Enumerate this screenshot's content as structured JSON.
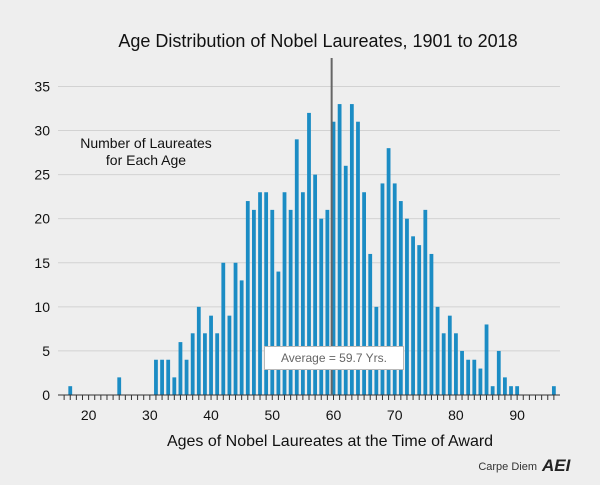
{
  "chart_data": {
    "type": "bar",
    "title": "Age Distribution of Nobel Laureates, 1901 to 2018",
    "xlabel": "Ages of Nobel Laureates at the Time of Award",
    "ylabel": "",
    "annotation_lines": [
      "Number of Laureates",
      "for Each Age"
    ],
    "average_value": 59.7,
    "average_label": "Average = 59.7 Yrs.",
    "xlim": [
      15,
      97
    ],
    "ylim": [
      0,
      38
    ],
    "x_ticks": [
      20,
      30,
      40,
      50,
      60,
      70,
      80,
      90
    ],
    "y_ticks": [
      0,
      5,
      10,
      15,
      20,
      25,
      30,
      35
    ],
    "grid": true,
    "bar_color": "#1b8cc4",
    "x": [
      17,
      18,
      19,
      20,
      21,
      22,
      23,
      24,
      25,
      26,
      27,
      28,
      29,
      30,
      31,
      32,
      33,
      34,
      35,
      36,
      37,
      38,
      39,
      40,
      41,
      42,
      43,
      44,
      45,
      46,
      47,
      48,
      49,
      50,
      51,
      52,
      53,
      54,
      55,
      56,
      57,
      58,
      59,
      60,
      61,
      62,
      63,
      64,
      65,
      66,
      67,
      68,
      69,
      70,
      71,
      72,
      73,
      74,
      75,
      76,
      77,
      78,
      79,
      80,
      81,
      82,
      83,
      84,
      85,
      86,
      87,
      88,
      89,
      90,
      91,
      92,
      93,
      94,
      95,
      96
    ],
    "values": [
      1,
      0,
      0,
      0,
      0,
      0,
      0,
      0,
      2,
      0,
      0,
      0,
      0,
      0,
      4,
      4,
      4,
      2,
      6,
      4,
      7,
      10,
      7,
      9,
      7,
      15,
      9,
      15,
      13,
      22,
      21,
      23,
      23,
      21,
      14,
      23,
      21,
      29,
      23,
      32,
      25,
      20,
      21,
      31,
      33,
      26,
      33,
      31,
      23,
      16,
      10,
      24,
      28,
      24,
      22,
      20,
      18,
      17,
      21,
      16,
      10,
      7,
      9,
      7,
      5,
      4,
      4,
      3,
      8,
      1,
      5,
      2,
      1,
      1,
      0,
      0,
      0,
      0,
      0,
      1
    ]
  },
  "source": {
    "credit": "Carpe Diem",
    "logo_text": "AEI"
  }
}
